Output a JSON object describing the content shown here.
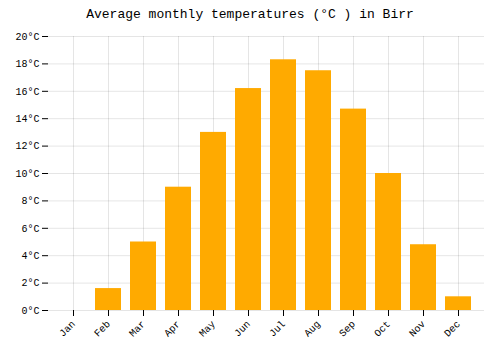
{
  "chart_data": {
    "type": "bar",
    "title": "Average monthly temperatures (°C ) in Birr",
    "categories": [
      "Jan",
      "Feb",
      "Mar",
      "Apr",
      "May",
      "Jun",
      "Jul",
      "Aug",
      "Sep",
      "Oct",
      "Nov",
      "Dec"
    ],
    "values": [
      0.0,
      1.6,
      5.0,
      9.0,
      13.0,
      16.2,
      18.3,
      17.5,
      14.7,
      10.0,
      4.8,
      1.0
    ],
    "color": "#FFAA00",
    "ylim": [
      0,
      20
    ],
    "yticks": [
      {
        "value": 0,
        "label": "0°C"
      },
      {
        "value": 2,
        "label": "2°C"
      },
      {
        "value": 4,
        "label": "4°C"
      },
      {
        "value": 6,
        "label": "6°C"
      },
      {
        "value": 8,
        "label": "8°C"
      },
      {
        "value": 10,
        "label": "10°C"
      },
      {
        "value": 12,
        "label": "12°C"
      },
      {
        "value": 14,
        "label": "14°C"
      },
      {
        "value": 16,
        "label": "16°C"
      },
      {
        "value": 18,
        "label": "18°C"
      },
      {
        "value": 20,
        "label": "20°C"
      }
    ],
    "grid": true
  }
}
